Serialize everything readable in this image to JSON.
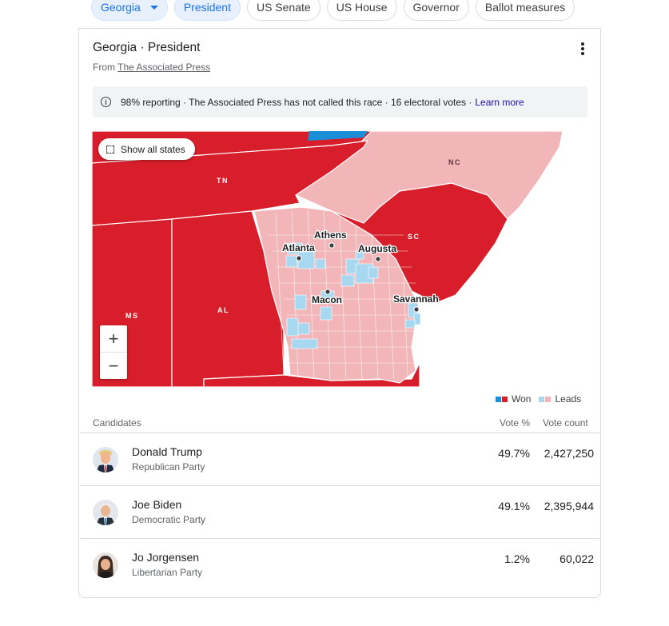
{
  "filters": {
    "chips": [
      {
        "label": "Georgia",
        "selected": true,
        "dropdown": true
      },
      {
        "label": "President",
        "selected": true
      },
      {
        "label": "US Senate"
      },
      {
        "label": "US House"
      },
      {
        "label": "Governor"
      },
      {
        "label": "Ballot measures"
      }
    ]
  },
  "race": {
    "title": "Georgia · President",
    "source_prefix": "From",
    "source": "The Associated Press",
    "status": "98% reporting · The Associated Press has not called this race · 16 electoral votes ·",
    "learn_more": "Learn more"
  },
  "map": {
    "show_all": "Show all states",
    "zoom_in": "+",
    "zoom_out": "−",
    "states": {
      "tn": "TN",
      "nc": "NC",
      "sc": "SC",
      "ms": "MS",
      "al": "AL"
    },
    "cities": {
      "atlanta": "Atlanta",
      "athens": "Athens",
      "augusta": "Augusta",
      "macon": "Macon",
      "savannah": "Savannah"
    },
    "colors": {
      "rep_won": "#d81e2a",
      "rep_leads": "#f2b5b8",
      "dem_won": "#1a8fd8",
      "dem_leads": "#a8d8f0"
    }
  },
  "legend": {
    "won": "Won",
    "leads": "Leads"
  },
  "table": {
    "headers": {
      "candidates": "Candidates",
      "vote_pct": "Vote %",
      "vote_count": "Vote count"
    },
    "candidates": [
      {
        "name": "Donald Trump",
        "party": "Republican Party",
        "pct": "49.7%",
        "count": "2,427,250"
      },
      {
        "name": "Joe Biden",
        "party": "Democratic Party",
        "pct": "49.1%",
        "count": "2,395,944"
      },
      {
        "name": "Jo Jorgensen",
        "party": "Libertarian Party",
        "pct": "1.2%",
        "count": "60,022"
      }
    ]
  }
}
